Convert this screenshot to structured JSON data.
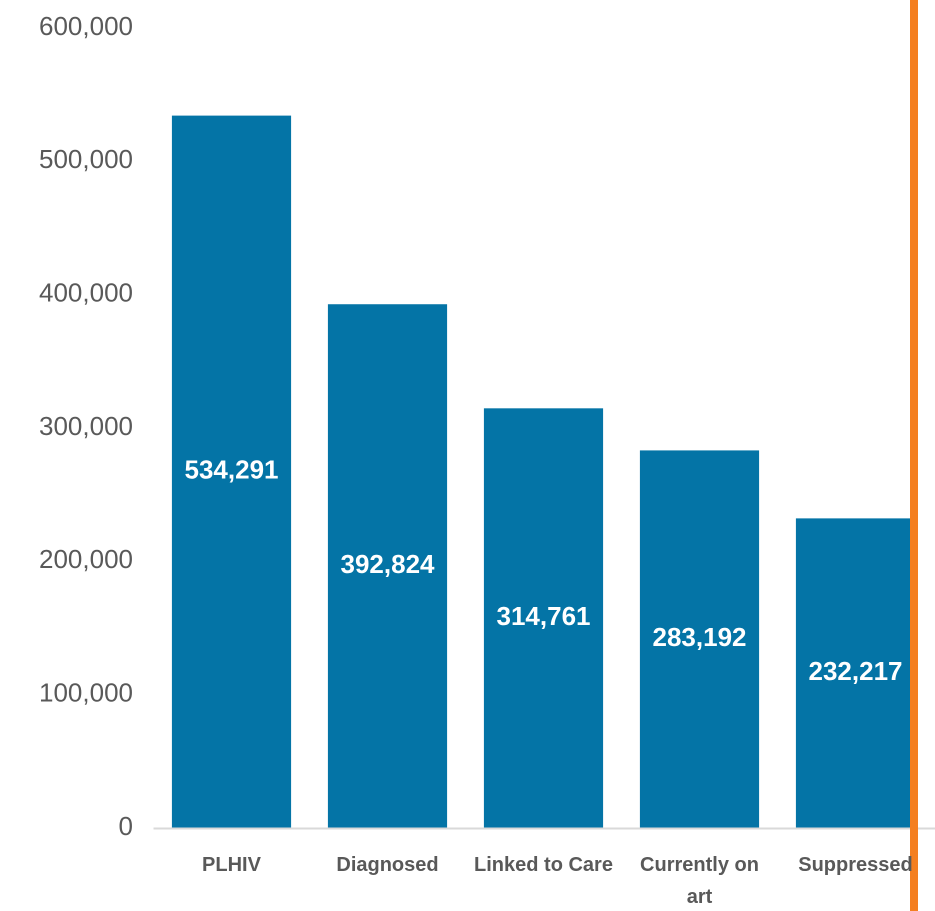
{
  "chart_data": {
    "type": "bar",
    "categories": [
      "PLHIV",
      "Diagnosed",
      "Linked to Care",
      "Currently on art",
      "Suppressed"
    ],
    "values": [
      534291,
      392824,
      314761,
      283192,
      232217
    ],
    "value_labels": [
      "534,291",
      "392,824",
      "314,761",
      "283,192",
      "232,217"
    ],
    "color": "#0474a6",
    "ylim": [
      0,
      600000
    ],
    "yticks": [
      {
        "value": 0,
        "label": "0"
      },
      {
        "value": 100000,
        "label": "100,000"
      },
      {
        "value": 200000,
        "label": "200,000"
      },
      {
        "value": 300000,
        "label": "300,000"
      },
      {
        "value": 400000,
        "label": "400,000"
      },
      {
        "value": 500000,
        "label": "500,000"
      },
      {
        "value": 600000,
        "label": "600,000"
      }
    ],
    "grid": false
  }
}
